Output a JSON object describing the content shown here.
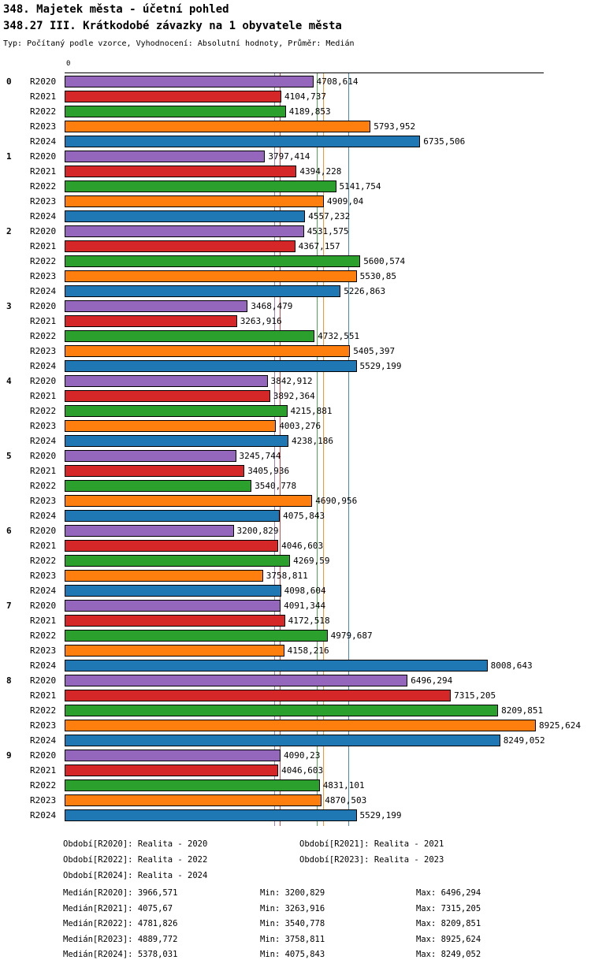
{
  "header": {
    "title": "348. Majetek města - účetní pohled",
    "subtitle": "348.27 III. Krátkodobé závazky na 1 obyvatele města",
    "meta": "Typ: Počítaný podle vzorce, Vyhodnocení: Absolutní hodnoty, Průměr: Medián"
  },
  "chart_data": {
    "type": "bar",
    "orientation": "horizontal",
    "title": "348.27 III. Krátkodobé závazky na 1 obyvatele města",
    "xlabel": "",
    "ylabel": "",
    "xlim": [
      0,
      9000
    ],
    "grid": false,
    "decimal_separator": ",",
    "axis": {
      "origin_label": "0"
    },
    "categories": [
      "0",
      "1",
      "2",
      "3",
      "4",
      "5",
      "6",
      "7",
      "8",
      "9"
    ],
    "series": [
      {
        "name": "R2020",
        "color": "#9467bd",
        "median": 3966.571,
        "values": [
          4708.614,
          3797.414,
          4531.575,
          3468.479,
          3842.912,
          3245.744,
          3200.829,
          4091.344,
          6496.294,
          4090.23
        ]
      },
      {
        "name": "R2021",
        "color": "#d62728",
        "median": 4075.67,
        "values": [
          4104.737,
          4394.228,
          4367.157,
          3263.916,
          3892.364,
          3405.936,
          4046.603,
          4172.518,
          7315.205,
          4046.603
        ]
      },
      {
        "name": "R2022",
        "color": "#2ca02c",
        "median": 4781.826,
        "values": [
          4189.853,
          5141.754,
          5600.574,
          4732.551,
          4215.881,
          3540.778,
          4269.59,
          4979.687,
          8209.851,
          4831.101
        ]
      },
      {
        "name": "R2023",
        "color": "#ff7f0e",
        "median": 4889.772,
        "values": [
          5793.952,
          4909.04,
          5530.85,
          5405.397,
          4003.276,
          4690.956,
          3758.811,
          4158.216,
          8925.624,
          4870.503
        ]
      },
      {
        "name": "R2024",
        "color": "#1f77b4",
        "median": 5378.031,
        "values": [
          6735.506,
          4557.232,
          5226.863,
          5529.199,
          4238.186,
          4075.843,
          4098.604,
          8008.643,
          8249.052,
          5529.199
        ]
      }
    ]
  },
  "footer": {
    "periods": [
      "Období[R2020]: Realita - 2020",
      "Období[R2021]: Realita - 2021",
      "Období[R2022]: Realita - 2022",
      "Období[R2023]: Realita - 2023",
      "Období[R2024]: Realita - 2024"
    ],
    "stats": [
      [
        "Medián[R2020]: 3966,571",
        "Min: 3200,829",
        "Max: 6496,294"
      ],
      [
        "Medián[R2021]: 4075,67",
        "Min: 3263,916",
        "Max: 7315,205"
      ],
      [
        "Medián[R2022]: 4781,826",
        "Min: 3540,778",
        "Max: 8209,851"
      ],
      [
        "Medián[R2023]: 4889,772",
        "Min: 3758,811",
        "Max: 8925,624"
      ],
      [
        "Medián[R2024]: 5378,031",
        "Min: 4075,843",
        "Max: 8249,052"
      ]
    ]
  }
}
